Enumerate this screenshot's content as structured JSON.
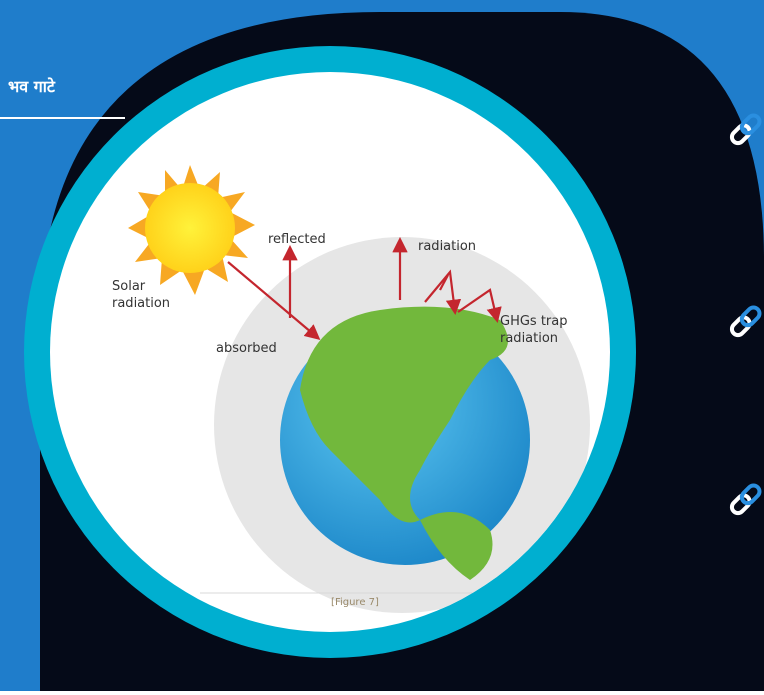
{
  "header": {
    "title": "भव गाटे"
  },
  "diagram": {
    "labels": {
      "reflected": "reflected",
      "radiation": "radiation",
      "solar": [
        "Solar",
        "radiation"
      ],
      "absorbed": "absorbed",
      "ghgs": [
        "GHGs trap",
        "radiation"
      ]
    },
    "caption": "[Figure 7]"
  }
}
